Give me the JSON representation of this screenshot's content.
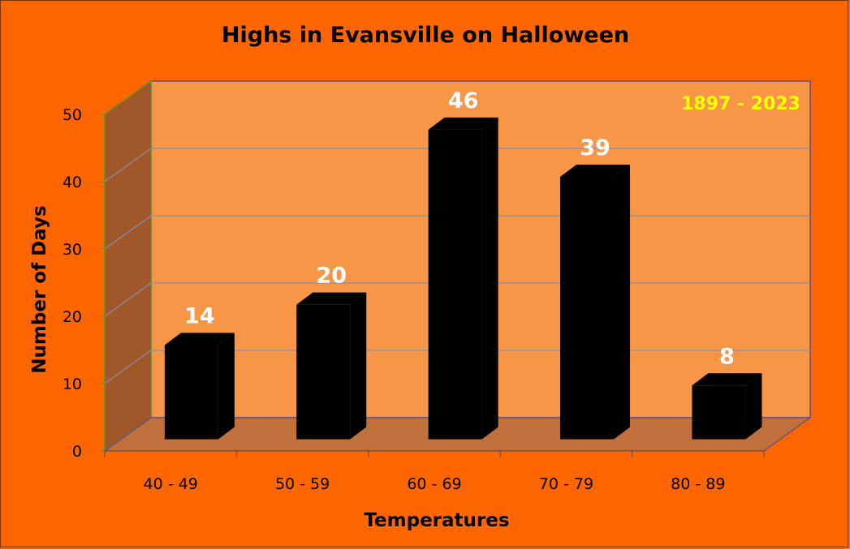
{
  "colors": {
    "background": "#ff6600",
    "back_wall": "#f79646",
    "side_wall": "#a0572a",
    "floor": "#c0703a",
    "bars": "#000000",
    "gridlines": "#8c8ca8",
    "data_labels": "#ffffff",
    "range_text": "#ffff00"
  },
  "chart_data": {
    "type": "bar",
    "title": "Highs in Evansville on Halloween",
    "annotation": "1897 - 2023",
    "xlabel": "Temperatures",
    "ylabel": "Number of Days",
    "categories": [
      "40 - 49",
      "50 - 59",
      "60 - 69",
      "70 - 79",
      "80 - 89"
    ],
    "values": [
      14,
      20,
      46,
      39,
      8
    ],
    "ylim": [
      0,
      50
    ],
    "yticks": [
      0,
      10,
      20,
      30,
      40,
      50
    ],
    "grid": true,
    "style": "3d-column"
  }
}
